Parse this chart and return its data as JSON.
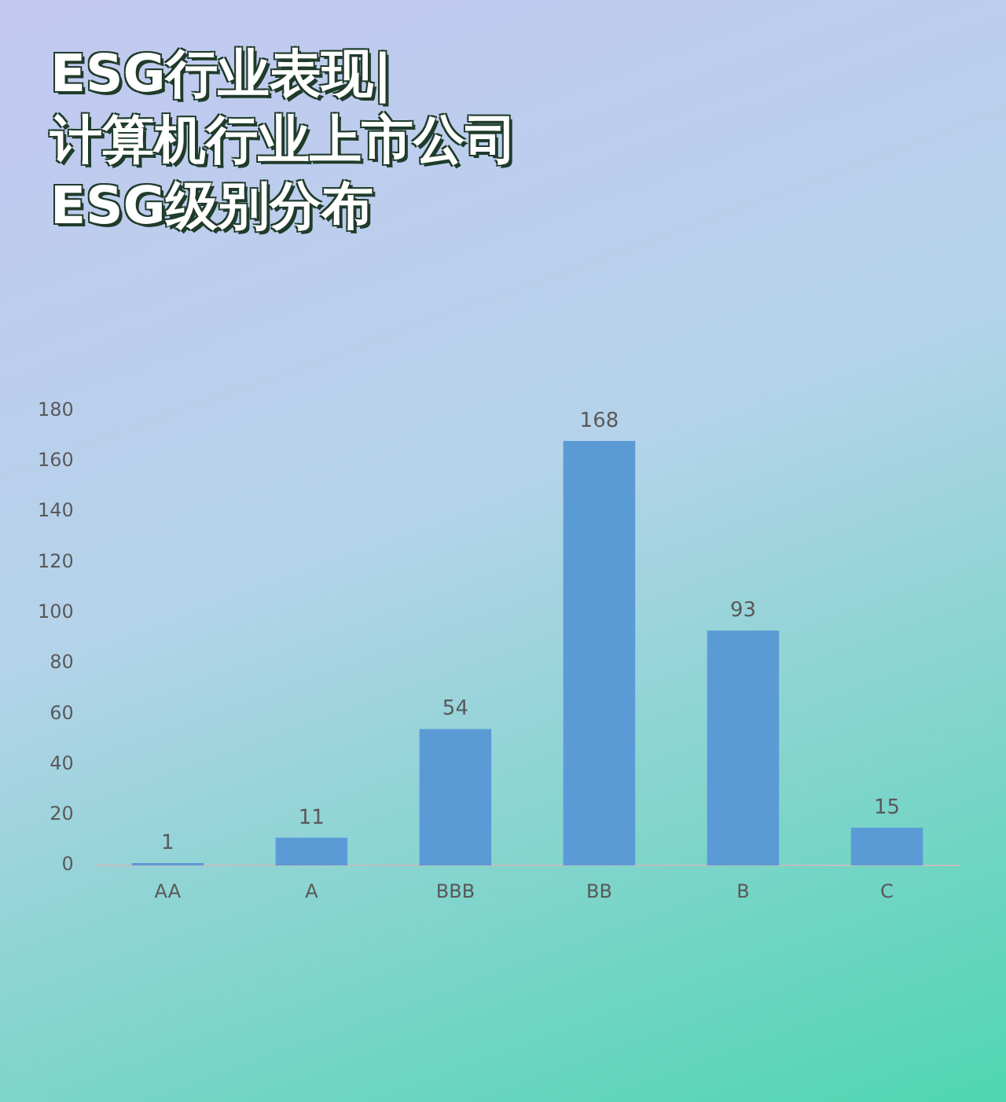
{
  "chart_data": {
    "type": "bar",
    "title": "ESG行业表现|\n计算机行业上市公司\nESG级别分布",
    "categories": [
      "AA",
      "A",
      "BBB",
      "BB",
      "B",
      "C"
    ],
    "values": [
      1,
      11,
      54,
      168,
      93,
      15
    ],
    "color": "#5b9bd5",
    "ylim": [
      0,
      180
    ],
    "yticks": [
      0,
      20,
      40,
      60,
      80,
      100,
      120,
      140,
      160,
      180
    ],
    "grid": false,
    "data_labels": true
  }
}
